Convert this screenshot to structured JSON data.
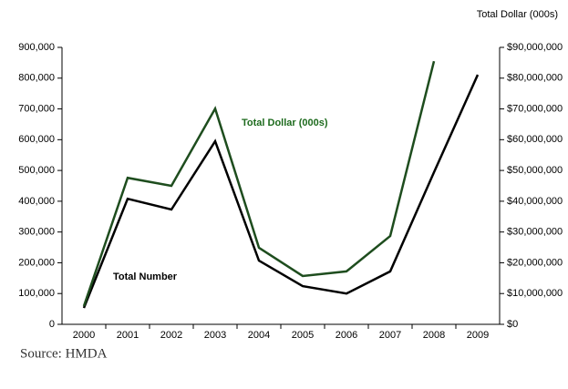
{
  "chart_data": {
    "type": "line",
    "categories": [
      "2000",
      "2001",
      "2002",
      "2003",
      "2004",
      "2005",
      "2006",
      "2007",
      "2008",
      "2009"
    ],
    "series": [
      {
        "name": "Total Number",
        "color": "#000000",
        "axis": "y",
        "values": [
          53000,
          408000,
          373000,
          595000,
          207000,
          124000,
          100000,
          172000,
          494000,
          811000
        ]
      },
      {
        "name": "Total Dollar (000s)",
        "color": "#1e4d1e",
        "axis": "y2",
        "values": [
          5900000,
          47600000,
          45000000,
          70100000,
          24900000,
          15700000,
          17200000,
          28700000,
          85500000,
          null
        ]
      }
    ],
    "ylim": [
      0,
      900000
    ],
    "yticks": [
      0,
      {
        "value": 100000,
        "label": "100,000"
      },
      {
        "value": 200000,
        "label": "200,000"
      },
      {
        "value": 300000,
        "label": "300,000"
      },
      {
        "value": 400000,
        "label": "400,000"
      },
      {
        "value": 500000,
        "label": "500,000"
      },
      {
        "value": 600000,
        "label": "600,000"
      },
      {
        "value": 700000,
        "label": "700,000"
      },
      {
        "value": 800000,
        "label": "800,000"
      },
      {
        "value": 900000,
        "label": "900,000"
      }
    ],
    "y2label": "Total Dollar (000s)",
    "y2lim": [
      0,
      90000000
    ],
    "y2ticks": [
      {
        "value": 0,
        "label": "$0"
      },
      {
        "value": 10000000,
        "label": "$10,000,000"
      },
      {
        "value": 20000000,
        "label": "$20,000,000"
      },
      {
        "value": 30000000,
        "label": "$30,000,000"
      },
      {
        "value": 40000000,
        "label": "$40,000,000"
      },
      {
        "value": 50000000,
        "label": "$50,000,000"
      },
      {
        "value": 60000000,
        "label": "$60,000,000"
      },
      {
        "value": 70000000,
        "label": "$70,000,000"
      },
      {
        "value": 80000000,
        "label": "$80,000,000"
      },
      {
        "value": 90000000,
        "label": "$90,000,000"
      }
    ],
    "source": "Source: HMDA"
  }
}
